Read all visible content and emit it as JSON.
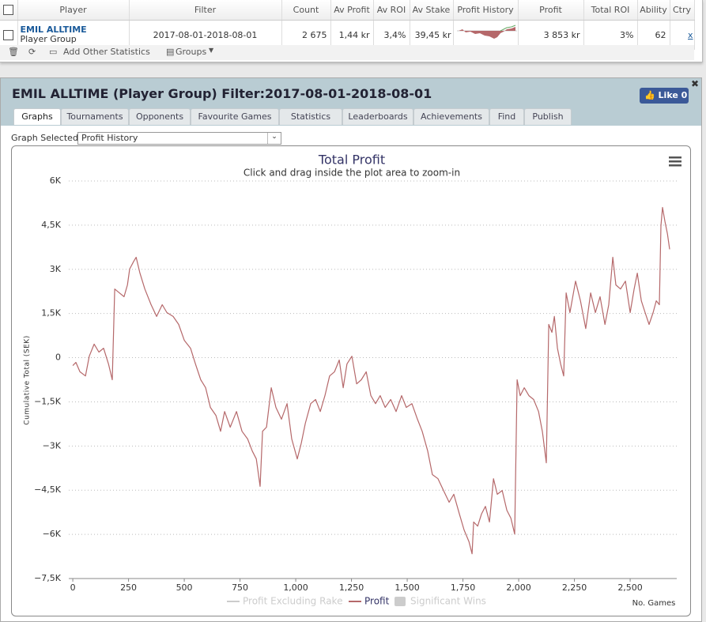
{
  "table": {
    "headers": [
      "Player",
      "Filter",
      "Count",
      "Av Profit",
      "Av ROI",
      "Av Stake",
      "Profit History",
      "Profit",
      "Total ROI",
      "Ability",
      "Ctry"
    ],
    "row": {
      "player": "EMIL ALLTIME",
      "player_type": "Player Group",
      "filter": "2017-08-01-2018-08-01",
      "count": "2 675",
      "av_profit": "1,44 kr",
      "av_roi": "3,4%",
      "av_stake": "39,45 kr",
      "profit": "3 853 kr",
      "total_roi": "3%",
      "ability": "62",
      "ctry": "x"
    }
  },
  "toolbar": {
    "add_stats": "Add Other Statistics",
    "groups": "Groups"
  },
  "panel": {
    "title": "EMIL ALLTIME (Player Group) Filter:2017-08-01-2018-08-01",
    "like": "Like",
    "like_count": "0",
    "tabs": [
      "Graphs",
      "Tournaments",
      "Opponents",
      "Favourite Games",
      "Statistics",
      "Leaderboards",
      "Achievements",
      "Find",
      "Publish"
    ],
    "graph_label": "Graph Selected:",
    "graph_selected": "Profit History"
  },
  "chart_data": {
    "type": "line",
    "title": "Total Profit",
    "subtitle": "Click and drag inside the plot area to zoom-in",
    "x_label": "No. Games",
    "y_label": "Cumulative Total (SEK)",
    "grid": true,
    "xlim": [
      -18,
      2709
    ],
    "ylim": [
      -7500,
      6000
    ],
    "xticks": [
      0,
      250,
      500,
      750,
      {
        "value": 1000,
        "label": "1,000"
      },
      {
        "value": 1250,
        "label": "1,250"
      },
      {
        "value": 1500,
        "label": "1,500"
      },
      {
        "value": 1750,
        "label": "1,750"
      },
      {
        "value": 2000,
        "label": "2,000"
      },
      {
        "value": 2250,
        "label": "2,250"
      },
      {
        "value": 2500,
        "label": "2,500"
      }
    ],
    "yticks": [
      {
        "value": 6000,
        "label": "6K"
      },
      {
        "value": 4500,
        "label": "4,5K"
      },
      {
        "value": 3000,
        "label": "3K"
      },
      {
        "value": 1500,
        "label": "1,5K"
      },
      0,
      {
        "value": -1500,
        "label": "−1,5K"
      },
      {
        "value": -3000,
        "label": "−3K"
      },
      {
        "value": -4500,
        "label": "−4,5K"
      },
      {
        "value": -6000,
        "label": "−6K"
      },
      {
        "value": -7500,
        "label": "−7,5K"
      }
    ],
    "hidden_series": [
      {
        "name": "Profit Excluding Rake",
        "color": "#cccccc"
      },
      {
        "name": "Significant Wins",
        "color": "#cccccc"
      }
    ],
    "x": [
      0,
      14,
      32,
      57,
      74,
      96,
      117,
      138,
      160,
      177,
      188,
      209,
      230,
      245,
      255,
      273,
      284,
      301,
      323,
      351,
      376,
      401,
      422,
      450,
      475,
      500,
      528,
      550,
      574,
      596,
      617,
      642,
      663,
      681,
      706,
      734,
      759,
      784,
      805,
      823,
      840,
      851,
      869,
      890,
      911,
      936,
      961,
      982,
      1007,
      1025,
      1043,
      1067,
      1089,
      1110,
      1131,
      1152,
      1174,
      1195,
      1213,
      1230,
      1252,
      1273,
      1294,
      1316,
      1337,
      1358,
      1379,
      1401,
      1426,
      1450,
      1475,
      1496,
      1521,
      1546,
      1567,
      1592,
      1613,
      1638,
      1663,
      1688,
      1709,
      1734,
      1755,
      1777,
      1791,
      1798,
      1816,
      1833,
      1851,
      1869,
      1887,
      1904,
      1926,
      1947,
      1965,
      1982,
      1993,
      2007,
      2025,
      2046,
      2067,
      2089,
      2106,
      2124,
      2135,
      2149,
      2160,
      2174,
      2188,
      2202,
      2213,
      2230,
      2255,
      2277,
      2301,
      2323,
      2344,
      2365,
      2387,
      2404,
      2422,
      2436,
      2457,
      2479,
      2500,
      2518,
      2532,
      2550,
      2567,
      2585,
      2603,
      2617,
      2631,
      2638,
      2645,
      2656,
      2667,
      2677
    ],
    "series": [
      {
        "name": "Profit",
        "color": "#b5686a",
        "values": [
          -270,
          -160,
          -480,
          -620,
          50,
          460,
          190,
          320,
          -210,
          -750,
          2330,
          2200,
          2070,
          2470,
          3010,
          3270,
          3410,
          2870,
          2330,
          1800,
          1400,
          1800,
          1530,
          1400,
          1130,
          590,
          320,
          -210,
          -750,
          -1020,
          -1690,
          -1960,
          -2500,
          -1830,
          -2360,
          -1830,
          -2500,
          -2760,
          -3170,
          -3440,
          -4370,
          -2500,
          -2360,
          -1020,
          -1690,
          -2090,
          -1560,
          -2760,
          -3440,
          -2900,
          -2230,
          -1560,
          -1420,
          -1830,
          -1290,
          -620,
          -480,
          -80,
          -1020,
          -210,
          50,
          -890,
          -750,
          -480,
          -1290,
          -1560,
          -1290,
          -1690,
          -1420,
          -1830,
          -1290,
          -1690,
          -1560,
          -2090,
          -2500,
          -3170,
          -3970,
          -4110,
          -4510,
          -4910,
          -4640,
          -5310,
          -5850,
          -6250,
          -6660,
          -5580,
          -5720,
          -5310,
          -5050,
          -5580,
          -4110,
          -4640,
          -4510,
          -5180,
          -5450,
          -5990,
          -750,
          -1290,
          -1020,
          -1290,
          -1420,
          -1830,
          -2500,
          -3570,
          1130,
          860,
          1400,
          320,
          -210,
          -620,
          2200,
          1530,
          2600,
          1930,
          990,
          2200,
          1530,
          2070,
          1130,
          1800,
          3410,
          2470,
          2330,
          2600,
          1530,
          2330,
          2870,
          1930,
          1530,
          1130,
          1530,
          1930,
          1800,
          4480,
          5100,
          4620,
          4210,
          3680
        ]
      }
    ]
  }
}
